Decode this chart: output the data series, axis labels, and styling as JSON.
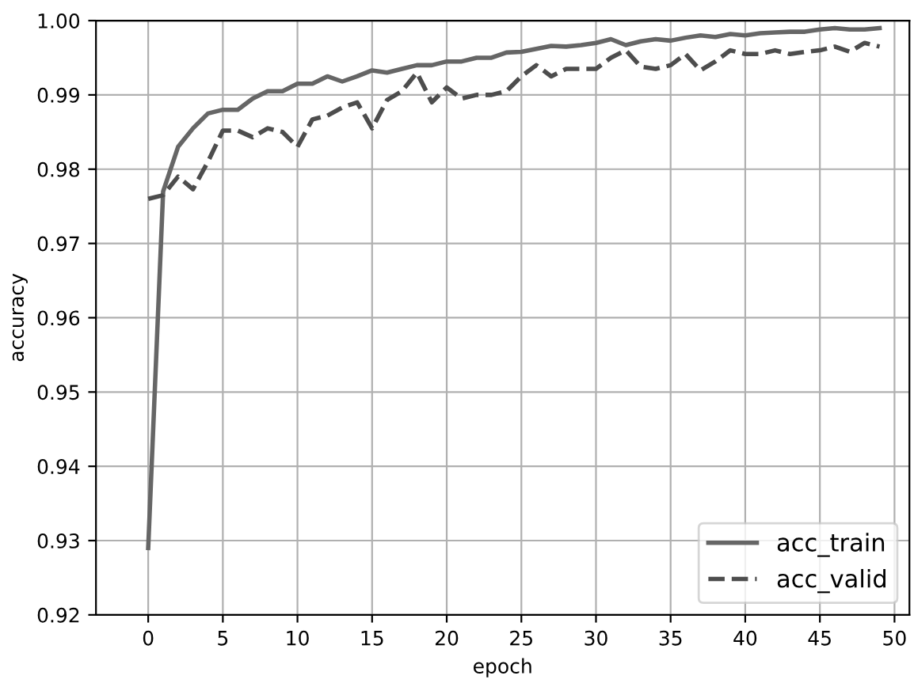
{
  "chart_data": {
    "type": "line",
    "xlabel": "epoch",
    "ylabel": "accuracy",
    "x": [
      0,
      1,
      2,
      3,
      4,
      5,
      6,
      7,
      8,
      9,
      10,
      11,
      12,
      13,
      14,
      15,
      16,
      17,
      18,
      19,
      20,
      21,
      22,
      23,
      24,
      25,
      26,
      27,
      28,
      29,
      30,
      31,
      32,
      33,
      34,
      35,
      36,
      37,
      38,
      39,
      40,
      41,
      42,
      43,
      44,
      45,
      46,
      47,
      48,
      49
    ],
    "series": [
      {
        "name": "acc_train",
        "color": "#666666",
        "line_style": "solid",
        "values": [
          0.929,
          0.977,
          0.983,
          0.9855,
          0.9875,
          0.988,
          0.988,
          0.9895,
          0.9905,
          0.9905,
          0.9915,
          0.9915,
          0.9925,
          0.9918,
          0.9925,
          0.9933,
          0.993,
          0.9935,
          0.994,
          0.994,
          0.9945,
          0.9945,
          0.995,
          0.995,
          0.9957,
          0.9958,
          0.9962,
          0.9966,
          0.9965,
          0.9967,
          0.997,
          0.9975,
          0.9967,
          0.9972,
          0.9975,
          0.9973,
          0.9977,
          0.998,
          0.9978,
          0.9982,
          0.998,
          0.9983,
          0.9984,
          0.9985,
          0.9985,
          0.9988,
          0.999,
          0.9988,
          0.9988,
          0.999
        ]
      },
      {
        "name": "acc_valid",
        "color": "#4d4d4d",
        "line_style": "dashed",
        "values": [
          0.976,
          0.9765,
          0.979,
          0.9773,
          0.981,
          0.9852,
          0.9852,
          0.9843,
          0.9855,
          0.985,
          0.983,
          0.9867,
          0.9872,
          0.9883,
          0.989,
          0.9855,
          0.9893,
          0.9905,
          0.993,
          0.989,
          0.991,
          0.9895,
          0.99,
          0.99,
          0.9905,
          0.9925,
          0.994,
          0.9925,
          0.9935,
          0.9935,
          0.9935,
          0.995,
          0.996,
          0.9938,
          0.9935,
          0.994,
          0.9955,
          0.9933,
          0.9945,
          0.996,
          0.9955,
          0.9955,
          0.996,
          0.9955,
          0.9958,
          0.996,
          0.9965,
          0.9958,
          0.997,
          0.9965
        ]
      }
    ],
    "xlim": [
      -3.5,
      51
    ],
    "xticks": [
      0,
      5,
      10,
      15,
      20,
      25,
      30,
      35,
      40,
      45,
      50
    ],
    "ylim": [
      0.92,
      1.0
    ],
    "yticks": [
      {
        "value": 0.92,
        "label": "0.92"
      },
      {
        "value": 0.93,
        "label": "0.93"
      },
      {
        "value": 0.94,
        "label": "0.94"
      },
      {
        "value": 0.95,
        "label": "0.95"
      },
      {
        "value": 0.96,
        "label": "0.96"
      },
      {
        "value": 0.97,
        "label": "0.97"
      },
      {
        "value": 0.98,
        "label": "0.98"
      },
      {
        "value": 0.99,
        "label": "0.99"
      },
      {
        "value": 1.0,
        "label": "1.00"
      }
    ],
    "grid": true,
    "legend": "bottom right"
  }
}
